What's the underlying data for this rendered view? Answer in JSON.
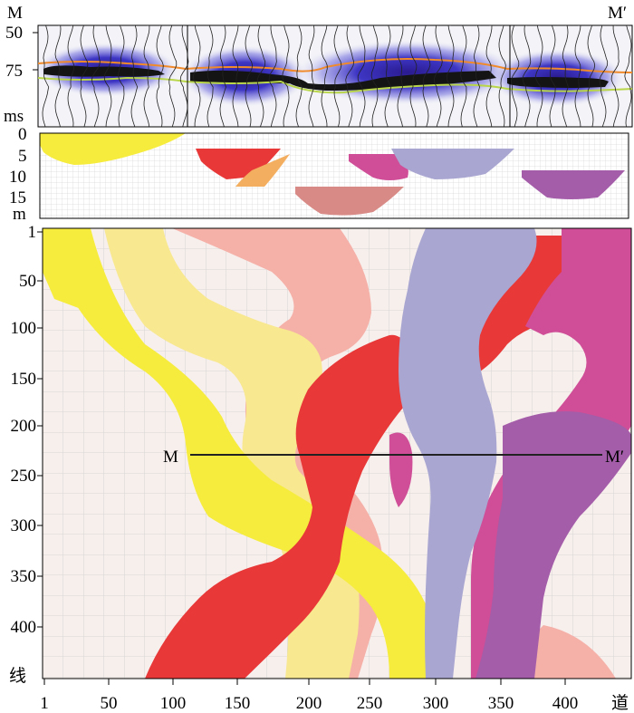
{
  "section_markers": {
    "start": "M",
    "end": "M′"
  },
  "seismic_panel": {
    "y_ticks": [
      "50",
      "75"
    ],
    "y_unit": "ms"
  },
  "depth_panel": {
    "y_ticks": [
      "0",
      "5",
      "10",
      "15"
    ],
    "y_unit": "m"
  },
  "map_panel": {
    "y_ticks": [
      "1",
      "50",
      "100",
      "150",
      "200",
      "250",
      "300",
      "350",
      "400"
    ],
    "y_axis_label": "线",
    "x_ticks": [
      "1",
      "50",
      "100",
      "150",
      "200",
      "250",
      "300",
      "350",
      "400"
    ],
    "x_axis_label": "道",
    "section_line_label_start": "M",
    "section_line_label_end": "M′"
  },
  "colors": {
    "yellow": "#f6ec3d",
    "light_yellow": "#f8e88f",
    "red": "#e83838",
    "pink_light": "#f5b0a8",
    "lavender": "#a9a6d1",
    "magenta": "#cf4e97",
    "purple": "#a45da9",
    "orange": "#f3ae60",
    "rose": "#d88a86",
    "grid": "#d4d4d4",
    "map_bg": "#f7efec",
    "seismic_bg": "#f2f2f7",
    "horizon_orange": "#f08a2a",
    "horizon_green": "#b9d64a"
  }
}
